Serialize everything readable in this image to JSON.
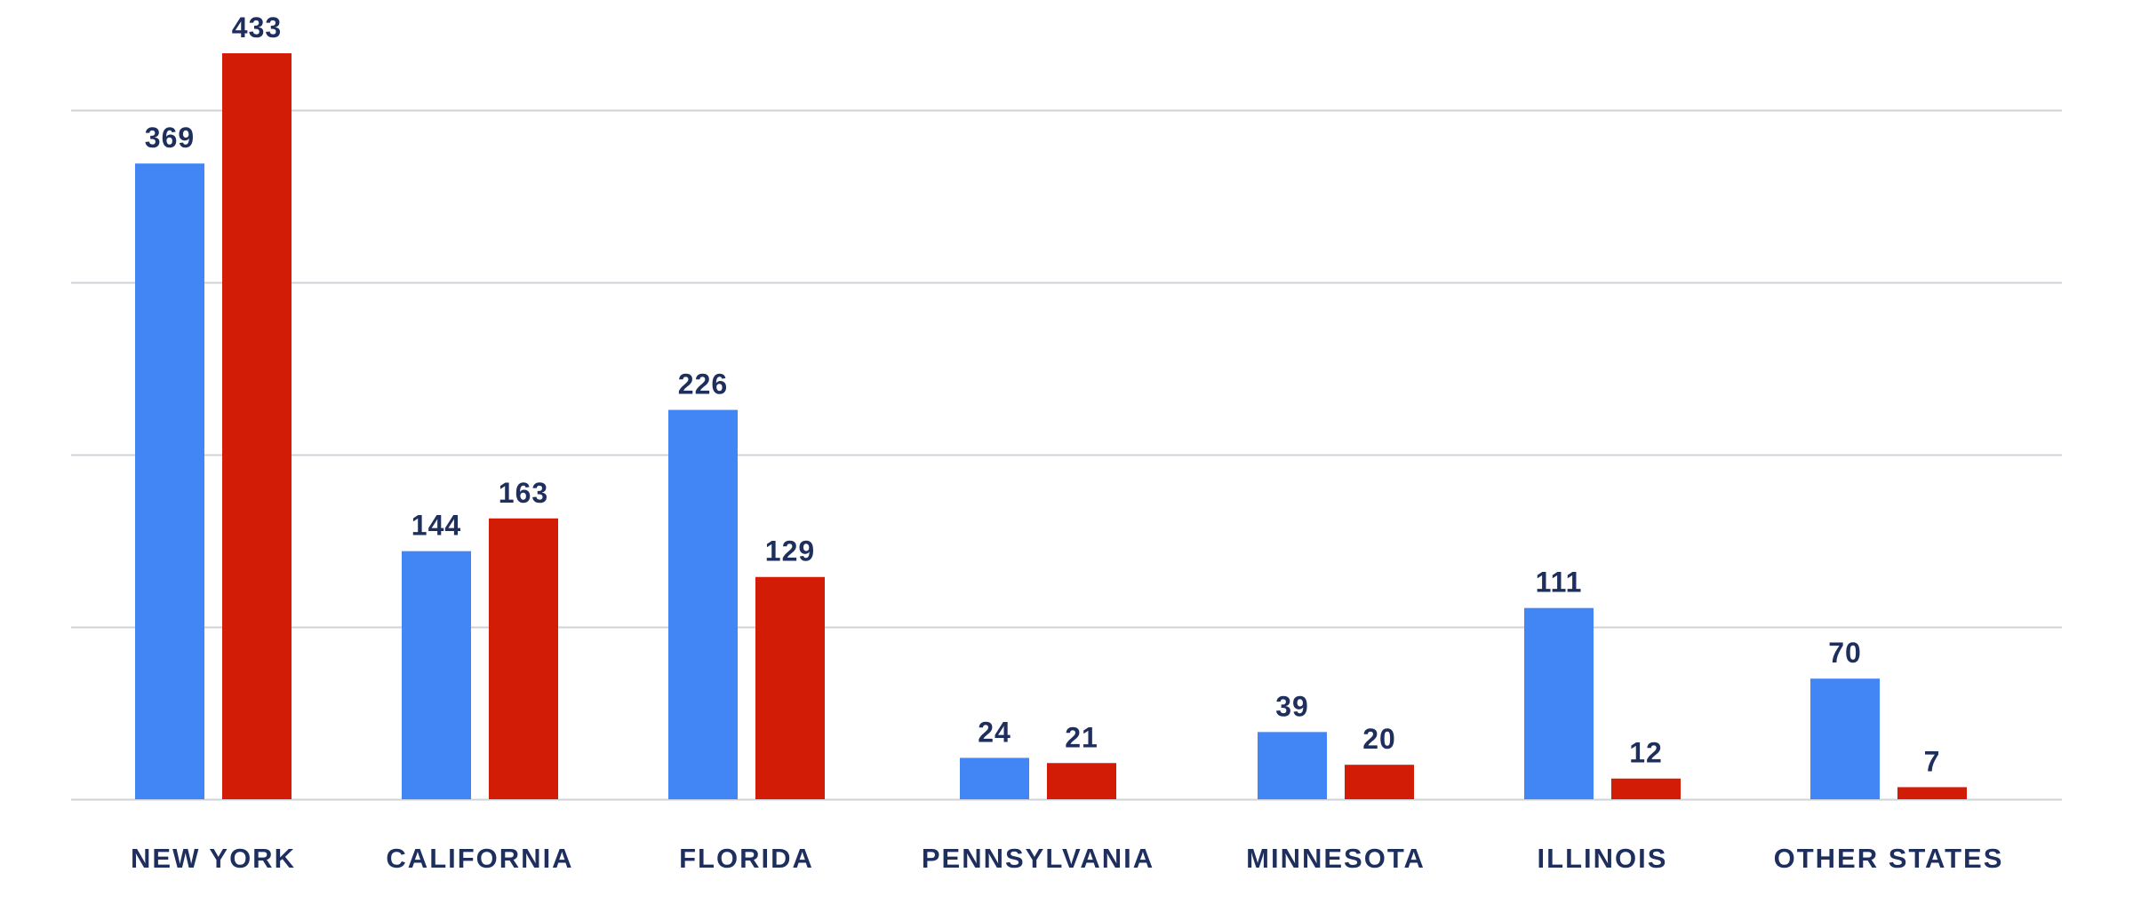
{
  "chart_data": {
    "type": "bar",
    "categories": [
      "NEW YORK",
      "CALIFORNIA",
      "FLORIDA",
      "PENNSYLVANIA",
      "MINNESOTA",
      "ILLINOIS",
      "OTHER STATES"
    ],
    "series": [
      {
        "color": "#4285f4",
        "values": [
          369,
          144,
          226,
          24,
          39,
          111,
          70
        ]
      },
      {
        "color": "#d21c06",
        "values": [
          433,
          163,
          129,
          21,
          20,
          12,
          7
        ]
      }
    ],
    "ylim": [
      0,
      466
    ],
    "gridline_values": [
      0,
      100,
      200,
      300,
      400
    ],
    "grid": true,
    "legend": "none",
    "title": "",
    "xlabel": "",
    "ylabel": ""
  }
}
